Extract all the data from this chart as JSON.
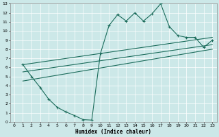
{
  "xlabel": "Humidex (Indice chaleur)",
  "bg_color": "#cce8e8",
  "line_color": "#1a6b5a",
  "xlim": [
    -0.5,
    23.5
  ],
  "ylim": [
    0,
    13
  ],
  "xticks": [
    0,
    1,
    2,
    3,
    4,
    5,
    6,
    7,
    8,
    9,
    10,
    11,
    12,
    13,
    14,
    15,
    16,
    17,
    18,
    19,
    20,
    21,
    22,
    23
  ],
  "yticks": [
    0,
    1,
    2,
    3,
    4,
    5,
    6,
    7,
    8,
    9,
    10,
    11,
    12,
    13
  ],
  "main_x": [
    1,
    2,
    3,
    4,
    5,
    6,
    7,
    8,
    9,
    10,
    11,
    12,
    13,
    14,
    15,
    16,
    17,
    18,
    19,
    20,
    21,
    22,
    23
  ],
  "main_y": [
    6.3,
    5.0,
    3.8,
    2.5,
    1.6,
    1.1,
    0.7,
    0.25,
    0.2,
    7.5,
    10.6,
    11.8,
    11.1,
    12.0,
    11.1,
    11.9,
    13.0,
    10.5,
    9.5,
    9.3,
    9.3,
    8.2,
    9.0
  ],
  "trend_lines": [
    {
      "x": [
        1,
        23
      ],
      "y": [
        6.3,
        9.3
      ]
    },
    {
      "x": [
        1,
        23
      ],
      "y": [
        5.5,
        8.5
      ]
    },
    {
      "x": [
        1,
        23
      ],
      "y": [
        4.5,
        8.0
      ]
    }
  ]
}
